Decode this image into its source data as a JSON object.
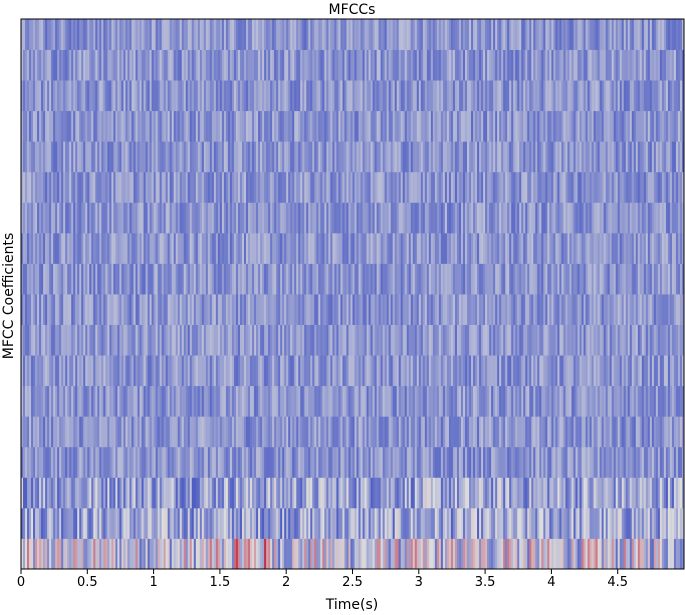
{
  "chart_data": {
    "type": "heatmap",
    "title": "MFCCs",
    "xlabel": "Time(s)",
    "ylabel": "MFCC Coefficients",
    "xlim": [
      0,
      5.0
    ],
    "x_ticks": [
      0,
      0.5,
      1,
      1.5,
      2,
      2.5,
      3,
      3.5,
      4,
      4.5
    ],
    "x_tick_labels": [
      "0",
      "0.5",
      "1",
      "1.5",
      "2",
      "2.5",
      "3",
      "3.5",
      "4",
      "4.5"
    ],
    "n_coefficients": 18,
    "y_ticks_shown": false,
    "colormap": "coolwarm",
    "colorbar": false,
    "grid": false,
    "colors": {
      "low": "#3b4cc0",
      "mid": "#dddddd",
      "high": "#b40426"
    }
  }
}
